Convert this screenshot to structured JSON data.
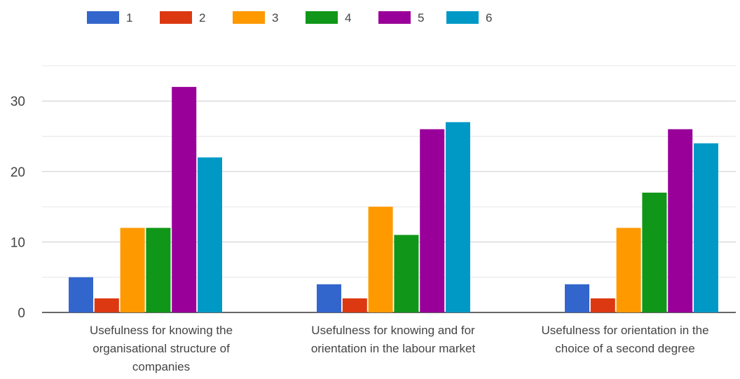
{
  "chart_data": {
    "type": "bar",
    "categories": [
      [
        "Usefulness for knowing the",
        "organisational structure of",
        "companies"
      ],
      [
        "Usefulness for knowing and for",
        "orientation in the labour market"
      ],
      [
        "Usefulness for orientation in the",
        "choice of a second degree"
      ]
    ],
    "series": [
      {
        "name": "1",
        "color": "#3366cc",
        "values": [
          5,
          4,
          4
        ]
      },
      {
        "name": "2",
        "color": "#dc3912",
        "values": [
          2,
          2,
          2
        ]
      },
      {
        "name": "3",
        "color": "#ff9900",
        "values": [
          12,
          15,
          12
        ]
      },
      {
        "name": "4",
        "color": "#109618",
        "values": [
          12,
          11,
          17
        ]
      },
      {
        "name": "5",
        "color": "#990099",
        "values": [
          32,
          26,
          26
        ]
      },
      {
        "name": "6",
        "color": "#0099c6",
        "values": [
          22,
          27,
          24
        ]
      }
    ],
    "y_ticks": [
      0,
      10,
      20,
      30
    ],
    "ylim": [
      0,
      35
    ],
    "grid": true,
    "legend_position": "top-left"
  }
}
